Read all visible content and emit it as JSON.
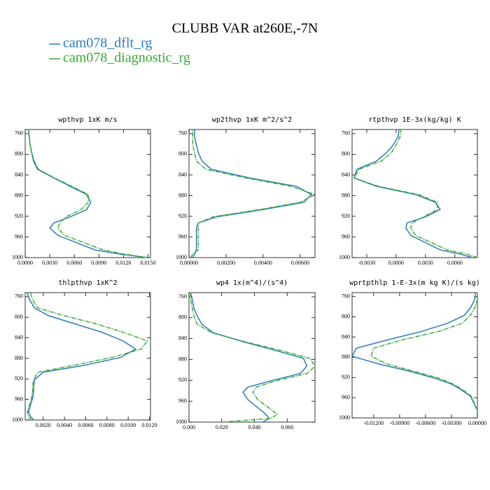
{
  "title": "CLUBB VAR at260E,-7N",
  "series": [
    {
      "name": "cam078_dflt_rg",
      "color": "#2b7bba"
    },
    {
      "name": "cam078_diagnostic_rg",
      "color": "#3aaa35"
    }
  ],
  "chart_data": [
    {
      "type": "profile",
      "title": "wpthvp  1xK m/s",
      "y": [
        1000,
        993,
        985,
        957,
        943,
        933,
        921,
        907,
        893,
        878,
        862,
        846,
        829,
        813,
        797,
        782,
        766,
        752
      ],
      "ylim": [
        1000,
        752
      ],
      "yticks": [
        760,
        800,
        840,
        880,
        920,
        960,
        1000
      ],
      "xlim": [
        0,
        0.0153
      ],
      "xticks": [
        {
          "value": 0,
          "label": "0.0000"
        },
        {
          "value": 0.003,
          "label": "0.0030"
        },
        {
          "value": 0.006,
          "label": "0.0060"
        },
        {
          "value": 0.009,
          "label": "0.0090"
        },
        {
          "value": 0.012,
          "label": "0.0120"
        },
        {
          "value": 0.015,
          "label": "0.0150"
        }
      ],
      "values": [
        [
          0.015,
          0.0115,
          0.0085,
          0.004,
          0.003,
          0.0035,
          0.0055,
          0.0075,
          0.008,
          0.0075,
          0.0055,
          0.0035,
          0.0015,
          0.001,
          0.0008,
          0.0006,
          0.0005,
          0.0004
        ],
        [
          0.0148,
          0.012,
          0.0095,
          0.0048,
          0.004,
          0.0042,
          0.005,
          0.0068,
          0.0077,
          0.0077,
          0.0057,
          0.0036,
          0.0016,
          0.0011,
          0.0008,
          0.0006,
          0.0005,
          0.0004
        ]
      ]
    },
    {
      "type": "profile",
      "title": "wp2thvp  1xK m^2/s^2",
      "y": [
        1000,
        993,
        985,
        957,
        943,
        933,
        921,
        907,
        893,
        878,
        862,
        846,
        829,
        813,
        797,
        782,
        766,
        752
      ],
      "ylim": [
        1000,
        752
      ],
      "yticks": [
        760,
        800,
        840,
        880,
        920,
        960,
        1000
      ],
      "xlim": [
        0,
        0.0068
      ],
      "xticks": [
        {
          "value": 0,
          "label": "0.00000"
        },
        {
          "value": 0.002,
          "label": "0.00200"
        },
        {
          "value": 0.004,
          "label": "0.00400"
        },
        {
          "value": 0.006,
          "label": "0.00600"
        }
      ],
      "values": [
        [
          0.0002,
          0.0003,
          0.0004,
          0.0004,
          0.0004,
          0.0005,
          0.0015,
          0.004,
          0.0062,
          0.0066,
          0.0058,
          0.0033,
          0.0012,
          0.0007,
          0.0005,
          0.0004,
          0.0003,
          0.0003
        ],
        [
          0.0001,
          0.0002,
          0.0005,
          0.0005,
          0.0005,
          0.0005,
          0.0013,
          0.0038,
          0.006,
          0.0068,
          0.0055,
          0.0031,
          0.0009,
          0.0004,
          0.0003,
          0.0002,
          0.0002,
          0.0002
        ]
      ]
    },
    {
      "type": "profile",
      "title": "rtpthvp  1E-3x(kg/kg) K",
      "y": [
        1000,
        993,
        985,
        957,
        943,
        933,
        921,
        907,
        893,
        878,
        862,
        846,
        829,
        813,
        797,
        782,
        766,
        752
      ],
      "ylim": [
        1000,
        752
      ],
      "yticks": [
        760,
        800,
        840,
        880,
        920,
        960,
        1000
      ],
      "xlim": [
        -0.0045,
        0.0083
      ],
      "xticks": [
        {
          "value": -0.003,
          "label": "-0.0030"
        },
        {
          "value": 0,
          "label": "0.0000"
        },
        {
          "value": 0.003,
          "label": "0.0030"
        },
        {
          "value": 0.006,
          "label": "0.0060"
        }
      ],
      "values": [
        [
          0.0078,
          0.0065,
          0.0045,
          0.0015,
          0.001,
          0.0011,
          0.003,
          0.0045,
          0.004,
          0.002,
          -0.002,
          -0.0043,
          -0.004,
          -0.002,
          -0.001,
          -0.0003,
          0.0002,
          0.0003
        ],
        [
          0.0083,
          0.0072,
          0.0052,
          0.002,
          0.0015,
          0.0016,
          0.0028,
          0.0042,
          0.0042,
          0.0023,
          -0.0018,
          -0.0043,
          -0.0038,
          -0.0015,
          -0.0005,
          0.0,
          0.0004,
          0.0005
        ]
      ]
    },
    {
      "type": "profile",
      "title": "thlpthvp  1xK^2",
      "y": [
        1000,
        993,
        985,
        957,
        943,
        933,
        921,
        907,
        893,
        878,
        862,
        846,
        829,
        813,
        797,
        782,
        766,
        752
      ],
      "ylim": [
        1000,
        752
      ],
      "yticks": [
        760,
        800,
        840,
        880,
        920,
        960,
        1000
      ],
      "xlim": [
        0.0003,
        0.0121
      ],
      "xticks": [
        {
          "value": 0.002,
          "label": "0.0020"
        },
        {
          "value": 0.004,
          "label": "0.0040"
        },
        {
          "value": 0.006,
          "label": "0.0060"
        },
        {
          "value": 0.008,
          "label": "0.0080"
        },
        {
          "value": 0.01,
          "label": "0.0100"
        },
        {
          "value": 0.012,
          "label": "0.0120"
        }
      ],
      "values": [
        [
          0.0011,
          0.0008,
          0.0006,
          0.001,
          0.0011,
          0.0011,
          0.0012,
          0.002,
          0.006,
          0.0093,
          0.0107,
          0.0095,
          0.0075,
          0.005,
          0.0025,
          0.0012,
          0.0007,
          0.0005
        ],
        [
          0.0009,
          0.0006,
          0.0005,
          0.0009,
          0.001,
          0.001,
          0.0011,
          0.0015,
          0.005,
          0.0085,
          0.0112,
          0.0118,
          0.0095,
          0.007,
          0.004,
          0.0015,
          0.001,
          0.0008
        ]
      ]
    },
    {
      "type": "profile",
      "title": "wp4  1x(m^4)/(s^4)",
      "y": [
        1000,
        993,
        985,
        957,
        943,
        933,
        921,
        907,
        893,
        878,
        862,
        846,
        829,
        813,
        797,
        782,
        766,
        752
      ],
      "ylim": [
        1000,
        752
      ],
      "yticks": [
        760,
        800,
        840,
        880,
        920,
        960,
        1000
      ],
      "xlim": [
        0,
        0.077
      ],
      "xticks": [
        {
          "value": 0,
          "label": "0.000"
        },
        {
          "value": 0.02,
          "label": "0.020"
        },
        {
          "value": 0.04,
          "label": "0.040"
        },
        {
          "value": 0.06,
          "label": "0.060"
        }
      ],
      "values": [
        [
          0.045,
          0.049,
          0.047,
          0.036,
          0.033,
          0.036,
          0.05,
          0.068,
          0.072,
          0.07,
          0.052,
          0.033,
          0.015,
          0.008,
          0.005,
          0.003,
          0.002,
          0.001
        ],
        [
          0.02,
          0.05,
          0.054,
          0.042,
          0.039,
          0.041,
          0.053,
          0.072,
          0.077,
          0.074,
          0.055,
          0.034,
          0.014,
          0.005,
          0.003,
          0.002,
          0.001,
          0.001
        ]
      ]
    },
    {
      "type": "profile",
      "title": "wprtpthlp  1-E-3x(m kg K)/(s kg)",
      "y": [
        1000,
        993,
        985,
        957,
        943,
        933,
        921,
        907,
        893,
        878,
        862,
        846,
        829,
        813,
        797,
        782,
        766,
        752
      ],
      "ylim": [
        1000,
        752
      ],
      "yticks": [
        760,
        800,
        840,
        880,
        920,
        960,
        1000
      ],
      "xlim": [
        -0.0145,
        0
      ],
      "xticks": [
        {
          "value": -0.012,
          "label": "-0.01200"
        },
        {
          "value": -0.009,
          "label": "-0.00900"
        },
        {
          "value": -0.006,
          "label": "-0.00600"
        },
        {
          "value": -0.003,
          "label": "-0.00300"
        },
        {
          "value": 0,
          "label": "0.00000"
        }
      ],
      "values": [
        [
          0,
          0,
          0,
          -0.0008,
          -0.002,
          -0.003,
          -0.005,
          -0.008,
          -0.0115,
          -0.0145,
          -0.014,
          -0.0105,
          -0.0065,
          -0.0035,
          -0.0015,
          -0.0008,
          -0.0003,
          -0.0002
        ],
        [
          0,
          0,
          0,
          -0.0007,
          -0.0018,
          -0.0028,
          -0.0045,
          -0.0075,
          -0.0105,
          -0.0123,
          -0.012,
          -0.0088,
          -0.0045,
          -0.0018,
          -0.0008,
          -0.0003,
          0,
          0
        ]
      ]
    }
  ]
}
